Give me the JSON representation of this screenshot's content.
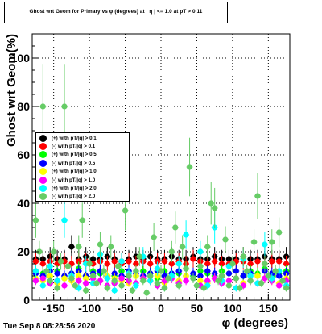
{
  "title": "Ghost wrt Geom for Primary vs φ (degrees) at | η | <= 1.0 at pT > 0.11",
  "timestamp": "Tue Sep  8 08:28:56 2020",
  "chart_data": {
    "type": "scatter",
    "xlabel": "φ (degrees)",
    "ylabel": "Ghost wrt Geom(%)",
    "xlim": [
      -180,
      180
    ],
    "ylim": [
      0,
      110
    ],
    "x_ticks": [
      -150,
      -100,
      -50,
      0,
      50,
      100,
      150
    ],
    "y_ticks": [
      0,
      20,
      40,
      60,
      80,
      100
    ],
    "grid": true,
    "legend_position": "left-middle",
    "series": [
      {
        "name": "(+) with pT/|q| > 0.1",
        "color": "#000000",
        "x": [
          -175,
          -165,
          -155,
          -145,
          -135,
          -125,
          -115,
          -105,
          -95,
          -85,
          -75,
          -65,
          -55,
          -45,
          -35,
          -25,
          -15,
          -5,
          5,
          15,
          25,
          35,
          45,
          55,
          65,
          75,
          85,
          95,
          105,
          115,
          125,
          135,
          145,
          155,
          165,
          175
        ],
        "y": [
          17,
          17,
          18,
          17,
          17,
          22,
          17,
          18,
          17,
          17,
          18,
          17,
          16,
          17,
          18,
          17,
          18,
          17,
          17,
          18,
          17,
          17,
          18,
          17,
          17,
          18,
          17,
          17,
          17,
          18,
          17,
          17,
          18,
          17,
          17,
          18
        ]
      },
      {
        "name": "(-) with pT/|q| > 0.1",
        "color": "#ff0000",
        "x": [
          -175,
          -165,
          -155,
          -145,
          -135,
          -125,
          -115,
          -105,
          -95,
          -85,
          -75,
          -65,
          -55,
          -45,
          -35,
          -25,
          -15,
          -5,
          5,
          15,
          25,
          35,
          45,
          55,
          65,
          75,
          85,
          95,
          105,
          115,
          125,
          135,
          145,
          155,
          165,
          175
        ],
        "y": [
          16,
          15,
          16,
          15,
          16,
          15,
          16,
          16,
          15,
          16,
          15,
          16,
          15,
          16,
          15,
          16,
          15,
          16,
          16,
          15,
          16,
          15,
          17,
          16,
          15,
          16,
          15,
          15,
          16,
          16,
          15,
          16,
          15,
          16,
          16,
          15
        ]
      },
      {
        "name": "(+) with pT/|q| > 0.5",
        "color": "#00ff00",
        "x": [
          -175,
          -165,
          -155,
          -145,
          -135,
          -125,
          -115,
          -105,
          -95,
          -85,
          -75,
          -65,
          -55,
          -45,
          -35,
          -25,
          -15,
          -5,
          5,
          15,
          25,
          35,
          45,
          55,
          65,
          75,
          85,
          95,
          105,
          115,
          125,
          135,
          145,
          155,
          165,
          175
        ],
        "y": [
          12,
          11,
          10,
          12,
          9,
          11,
          13,
          10,
          12,
          11,
          9,
          10,
          12,
          11,
          10,
          12,
          11,
          9,
          12,
          10,
          11,
          13,
          10,
          12,
          11,
          10,
          12,
          11,
          9,
          10,
          12,
          11,
          13,
          10,
          11,
          12
        ]
      },
      {
        "name": "(-) with pT/|q| > 0.5",
        "color": "#0000ff",
        "x": [
          -175,
          -165,
          -155,
          -145,
          -135,
          -125,
          -115,
          -105,
          -95,
          -85,
          -75,
          -65,
          -55,
          -45,
          -35,
          -25,
          -15,
          -5,
          5,
          15,
          25,
          35,
          45,
          55,
          65,
          75,
          85,
          95,
          105,
          115,
          125,
          135,
          145,
          155,
          165,
          175
        ],
        "y": [
          11,
          10,
          12,
          11,
          10,
          11,
          12,
          10,
          11,
          12,
          10,
          11,
          10,
          12,
          11,
          10,
          11,
          12,
          10,
          11,
          12,
          10,
          11,
          10,
          12,
          11,
          10,
          11,
          12,
          10,
          11,
          10,
          12,
          11,
          10,
          11
        ]
      },
      {
        "name": "(+) with pT/|q| > 1.0",
        "color": "#ffff00",
        "x": [
          -175,
          -165,
          -155,
          -145,
          -135,
          -125,
          -115,
          -105,
          -95,
          -85,
          -75,
          -65,
          -55,
          -45,
          -35,
          -25,
          -15,
          -5,
          5,
          15,
          25,
          35,
          45,
          55,
          65,
          75,
          85,
          95,
          105,
          115,
          125,
          135,
          145,
          155,
          165,
          175
        ],
        "y": [
          9,
          8,
          10,
          7,
          9,
          8,
          10,
          9,
          7,
          8,
          10,
          9,
          8,
          7,
          10,
          9,
          8,
          10,
          7,
          9,
          8,
          10,
          9,
          8,
          7,
          9,
          10,
          8,
          9,
          7,
          8,
          10,
          9,
          8,
          7,
          9
        ]
      },
      {
        "name": "(-) with pT/|q| > 1.0",
        "color": "#ff00ff",
        "x": [
          -175,
          -165,
          -155,
          -145,
          -135,
          -125,
          -115,
          -105,
          -95,
          -85,
          -75,
          -65,
          -55,
          -45,
          -35,
          -25,
          -15,
          -5,
          5,
          15,
          25,
          35,
          45,
          55,
          65,
          75,
          85,
          95,
          105,
          115,
          125,
          135,
          145,
          155,
          165,
          175
        ],
        "y": [
          8,
          9,
          7,
          8,
          6,
          9,
          8,
          7,
          9,
          8,
          6,
          7,
          9,
          8,
          7,
          9,
          8,
          6,
          8,
          9,
          7,
          8,
          9,
          6,
          8,
          9,
          7,
          8,
          9,
          6,
          8,
          7,
          9,
          8,
          6,
          8
        ]
      },
      {
        "name": "(+) with pT/|q| > 2.0",
        "color": "#00ffff",
        "x": [
          -175,
          -165,
          -155,
          -145,
          -135,
          -125,
          -115,
          -105,
          -95,
          -85,
          -75,
          -65,
          -55,
          -45,
          -35,
          -25,
          -15,
          -5,
          5,
          15,
          25,
          35,
          45,
          55,
          65,
          75,
          85,
          95,
          105,
          115,
          125,
          135,
          145,
          155,
          165,
          175
        ],
        "y": [
          12,
          6,
          14,
          8,
          33,
          10,
          5,
          15,
          7,
          19,
          9,
          4,
          16,
          11,
          6,
          18,
          8,
          13,
          5,
          10,
          15,
          27,
          9,
          20,
          6,
          30,
          8,
          14,
          5,
          17,
          10,
          7,
          23,
          9,
          12,
          6
        ]
      },
      {
        "name": "(-) with pT/|q| > 2.0",
        "color": "#66cc66",
        "x": [
          -175,
          -170,
          -165,
          -160,
          -155,
          -150,
          -145,
          -140,
          -135,
          -130,
          -125,
          -120,
          -115,
          -110,
          -105,
          -100,
          -95,
          -90,
          -85,
          -80,
          -75,
          -70,
          -65,
          -60,
          -55,
          -50,
          -45,
          -40,
          -35,
          -30,
          -25,
          -20,
          -15,
          -10,
          -5,
          0,
          5,
          10,
          15,
          20,
          25,
          30,
          35,
          40,
          45,
          50,
          55,
          60,
          65,
          70,
          75,
          80,
          85,
          90,
          95,
          100,
          105,
          110,
          115,
          120,
          125,
          130,
          135,
          140,
          145,
          150,
          155,
          160,
          165,
          170,
          175
        ],
        "y": [
          33,
          20,
          80,
          12,
          8,
          20,
          5,
          16,
          80,
          14,
          9,
          6,
          22,
          33,
          4,
          15,
          10,
          7,
          23,
          12,
          5,
          22,
          8,
          14,
          6,
          37,
          10,
          4,
          12,
          18,
          8,
          3,
          10,
          26,
          7,
          12,
          5,
          9,
          20,
          30,
          6,
          22,
          13,
          55,
          9,
          6,
          14,
          5,
          22,
          40,
          38,
          8,
          10,
          25,
          6,
          15,
          9,
          5,
          18,
          12,
          8,
          24,
          43,
          7,
          15,
          10,
          24,
          12,
          28,
          8,
          5
        ]
      }
    ]
  }
}
